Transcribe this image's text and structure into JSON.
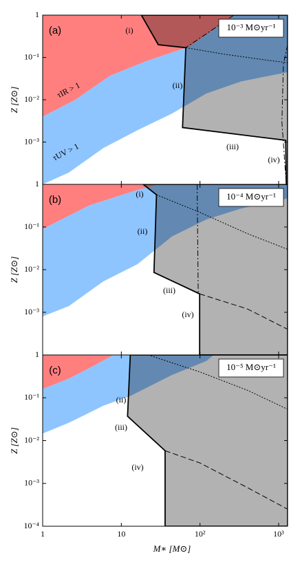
{
  "chart_data": [
    {
      "type": "region",
      "panel": "(a)",
      "rate": "10⁻³ M⊙yr⁻¹",
      "ylabel": "Z [Z⊙]",
      "xlim": [
        1,
        1300
      ],
      "ylim": [
        0.0001,
        1
      ],
      "log": true,
      "yticks": [
        1,
        {
          "value": 0.1,
          "label": "10⁻¹"
        },
        {
          "value": 0.01,
          "label": "10⁻²"
        },
        {
          "value": 0.001,
          "label": "10⁻³"
        }
      ],
      "regions": [
        {
          "color": "#8ec5ff",
          "opacity": 1,
          "x": [
            1,
            2.6,
            7.2,
            20,
            73,
            270,
            1300,
            1300,
            330,
            120,
            44,
            16,
            5.9,
            2.15,
            1
          ],
          "y": [
            0.004,
            0.01,
            0.037,
            0.08,
            0.18,
            1,
            1,
            0.045,
            0.027,
            0.014,
            0.0047,
            0.0019,
            0.00072,
            0.00019,
            0.0001
          ]
        },
        {
          "color": "#ff7f7f",
          "opacity": 1,
          "x": [
            1,
            270,
            73,
            20,
            7.2,
            2.6,
            1
          ],
          "y": [
            1,
            1,
            0.18,
            0.08,
            0.037,
            0.01,
            0.004
          ]
        },
        {
          "color": "#000000",
          "opacity": 0.3,
          "x": [
            18,
            29.5,
            66,
            60,
            1230,
            1250,
            1300,
            1300
          ],
          "y": [
            1,
            0.2,
            0.17,
            0.0022,
            0.0011,
            0.0001,
            0.0001,
            1
          ]
        }
      ],
      "lines": [
        {
          "style": "dotted",
          "x": [
            66,
            200,
            600,
            1300
          ],
          "y": [
            0.17,
            0.12,
            0.09,
            0.075
          ]
        },
        {
          "style": "dash-dot",
          "x": [
            270,
            66
          ],
          "y": [
            1,
            0.17
          ]
        },
        {
          "style": "dash-dot",
          "x": [
            1300,
            1150,
            1100,
            1250
          ],
          "y": [
            0.2,
            0.07,
            0.003,
            0.0001
          ]
        }
      ],
      "annotations": [
        "(i)",
        "(ii)",
        "(iii)",
        "(iv)",
        "τIR > 1",
        "τUV > 1"
      ]
    },
    {
      "type": "region",
      "panel": "(b)",
      "rate": "10⁻⁴ M⊙yr⁻¹",
      "ylabel": "Z [Z⊙]",
      "xlim": [
        1,
        1300
      ],
      "ylim": [
        0.0001,
        1
      ],
      "log": true,
      "yticks": [
        1,
        {
          "value": 0.1,
          "label": "10⁻¹"
        },
        {
          "value": 0.01,
          "label": "10⁻²"
        },
        {
          "value": 0.001,
          "label": "10⁻³"
        }
      ],
      "regions": [
        {
          "color": "#8ec5ff",
          "opacity": 1,
          "x": [
            1,
            3.9,
            16,
            30,
            1300,
            1300,
            330,
            120,
            44,
            16,
            5.9,
            2.15,
            1
          ],
          "y": [
            0.09,
            0.32,
            0.74,
            1,
            1,
            0.47,
            0.27,
            0.15,
            0.06,
            0.0134,
            0.0053,
            0.0014,
            0.0008
          ]
        },
        {
          "color": "#ff7f7f",
          "opacity": 1,
          "x": [
            1,
            30,
            16,
            3.9,
            1
          ],
          "y": [
            1,
            1,
            0.74,
            0.32,
            0.09
          ]
        },
        {
          "color": "#000000",
          "opacity": 0.3,
          "x": [
            19,
            28,
            26,
            99,
            99,
            1300,
            1300
          ],
          "y": [
            1,
            0.57,
            0.0086,
            0.0027,
            0.0001,
            0.0001,
            1
          ]
        }
      ],
      "lines": [
        {
          "style": "dotted",
          "x": [
            28,
            100,
            400,
            1300
          ],
          "y": [
            0.57,
            0.22,
            0.07,
            0.03
          ]
        },
        {
          "style": "dashed",
          "x": [
            99,
            400,
            1300
          ],
          "y": [
            0.0027,
            0.0012,
            0.0004
          ]
        },
        {
          "style": "dash-dot",
          "x": [
            92,
            95
          ],
          "y": [
            1,
            0.0027
          ]
        }
      ],
      "annotations": [
        "(i)",
        "(ii)",
        "(iii)",
        "(iv)"
      ]
    },
    {
      "type": "region",
      "panel": "(c)",
      "rate": "10⁻⁵ M⊙yr⁻¹",
      "ylabel": "Z [Z⊙]",
      "xlabel": "M∗ [M⊙]",
      "xlim": [
        1,
        1300
      ],
      "ylim": [
        0.0001,
        1
      ],
      "log": true,
      "xticks": [
        1,
        10,
        {
          "value": 100,
          "label": "10²"
        },
        {
          "value": 1000,
          "label": "10³"
        }
      ],
      "yticks": [
        1,
        {
          "value": 0.1,
          "label": "10⁻¹"
        },
        {
          "value": 0.01,
          "label": "10⁻²"
        },
        {
          "value": 0.001,
          "label": "10⁻³"
        },
        {
          "value": 0.0001,
          "label": "10⁻⁴"
        }
      ],
      "regions": [
        {
          "color": "#8ec5ff",
          "opacity": 1,
          "x": [
            1,
            2.15,
            4.8,
            8,
            150,
            120,
            44,
            13,
            5.9,
            2.15,
            1
          ],
          "y": [
            0.16,
            0.28,
            0.6,
            1,
            1,
            0.72,
            0.34,
            0.11,
            0.065,
            0.026,
            0.0146
          ]
        },
        {
          "color": "#ff7f7f",
          "opacity": 1,
          "x": [
            1,
            8,
            4.8,
            2.15,
            1
          ],
          "y": [
            1,
            1,
            0.6,
            0.28,
            0.16
          ]
        },
        {
          "color": "#000000",
          "opacity": 0.3,
          "x": [
            13,
            12,
            36,
            36,
            1300,
            1300
          ],
          "y": [
            1,
            0.037,
            0.0058,
            0.0001,
            0.0001,
            1
          ]
        }
      ],
      "lines": [
        {
          "style": "dotted",
          "x": [
            22,
            100,
            400,
            1300
          ],
          "y": [
            1,
            0.4,
            0.15,
            0.054
          ]
        },
        {
          "style": "dashed",
          "x": [
            36,
            100,
            400,
            1300
          ],
          "y": [
            0.0058,
            0.003,
            0.0008,
            0.00025
          ]
        }
      ],
      "annotations": [
        "(ii)",
        "(iii)",
        "(iv)"
      ]
    }
  ]
}
